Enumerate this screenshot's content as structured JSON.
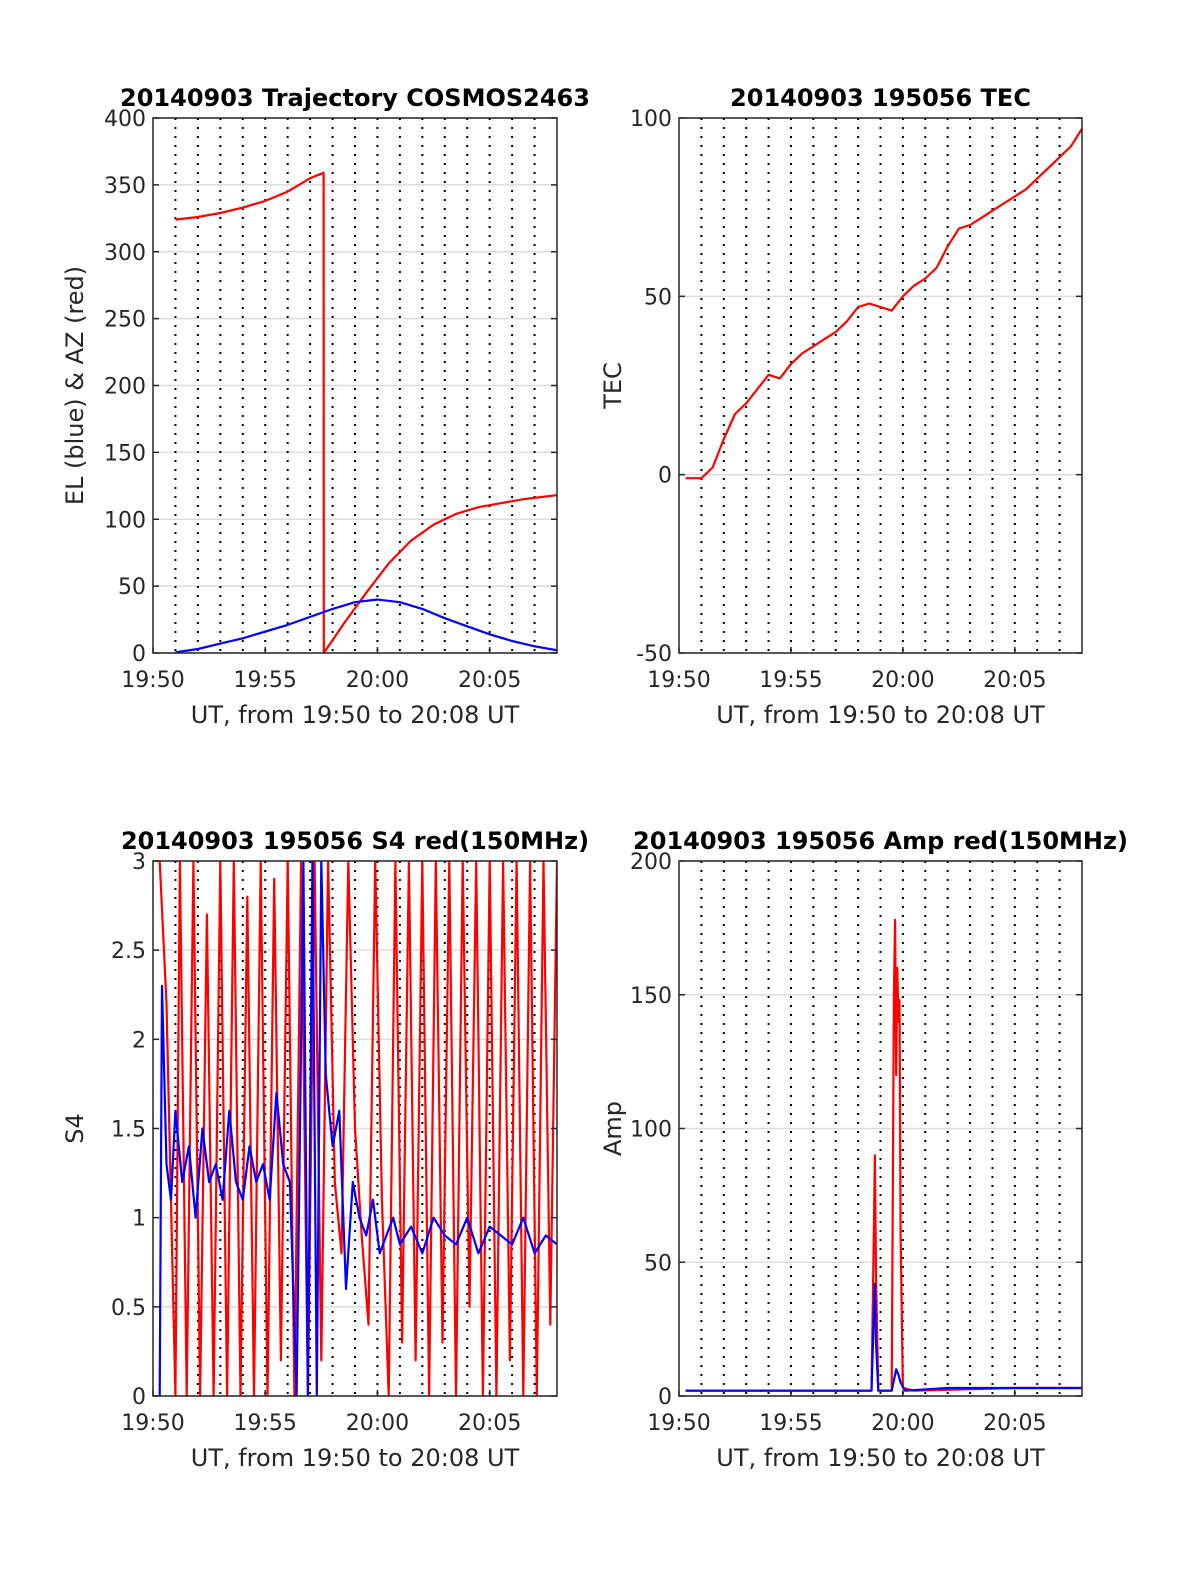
{
  "chart_data": [
    {
      "type": "line",
      "title": "20140903 Trajectory COSMOS2463",
      "xlabel": "UT, from 19:50 to 20:08 UT",
      "ylabel": "EL (blue) & AZ (red)",
      "x_unit": "minutes after 19:50 UT",
      "xlim": [
        0,
        18
      ],
      "ylim": [
        0,
        400
      ],
      "xticks": [
        0,
        5,
        10,
        15
      ],
      "xtick_labels": [
        "19:50",
        "19:55",
        "20:00",
        "20:05"
      ],
      "yticks": [
        0,
        50,
        100,
        150,
        200,
        250,
        300,
        350,
        400
      ],
      "ytick_labels": [
        "0",
        "50",
        "100",
        "150",
        "200",
        "250",
        "300",
        "350",
        "400"
      ],
      "grid": true,
      "series": [
        {
          "color": "#ff0000",
          "x": [
            1,
            2,
            3,
            4,
            5,
            6,
            6.5,
            7,
            7.6,
            7.61,
            8.5,
            9.5,
            10.5,
            11.5,
            12.5,
            13.5,
            14.5,
            15.5,
            16.5,
            17.5,
            18
          ],
          "values": [
            324,
            326,
            329,
            333,
            338,
            345,
            350,
            355,
            359,
            0,
            22,
            45,
            67,
            84,
            96,
            104,
            109,
            112,
            115,
            117,
            118
          ]
        },
        {
          "color": "#0000ff",
          "x": [
            1,
            2,
            3,
            4,
            5,
            6,
            7,
            8,
            9,
            10,
            11,
            12,
            13,
            14,
            15,
            16,
            17,
            18
          ],
          "values": [
            0.5,
            3,
            7,
            11,
            16,
            21,
            27,
            33,
            38,
            40,
            38,
            33,
            26,
            20,
            14,
            9,
            5,
            2
          ]
        }
      ]
    },
    {
      "type": "line",
      "title": "20140903 195056 TEC",
      "xlabel": "UT, from 19:50 to 20:08 UT",
      "ylabel": "TEC",
      "x_unit": "minutes after 19:50 UT",
      "xlim": [
        0,
        18
      ],
      "ylim": [
        -50,
        100
      ],
      "xticks": [
        0,
        5,
        10,
        15
      ],
      "xtick_labels": [
        "19:50",
        "19:55",
        "20:00",
        "20:05"
      ],
      "yticks": [
        -50,
        0,
        50,
        100
      ],
      "ytick_labels": [
        "-50",
        "0",
        "50",
        "100"
      ],
      "grid": true,
      "series": [
        {
          "color": "#ff0000",
          "x": [
            0.3,
            1,
            1.5,
            2,
            2.5,
            3,
            3.5,
            4,
            4.5,
            5,
            5.5,
            6,
            6.5,
            7,
            7.5,
            8,
            8.5,
            9,
            9.5,
            10,
            10.5,
            11,
            11.5,
            12,
            12.5,
            13,
            13.5,
            14,
            14.5,
            15,
            15.5,
            16,
            16.5,
            17,
            17.5,
            18
          ],
          "values": [
            -1,
            -1,
            2,
            10,
            17,
            20,
            24,
            28,
            27,
            31,
            34,
            36,
            38,
            40,
            43,
            47,
            48,
            47,
            46,
            50,
            53,
            55,
            58,
            64,
            69,
            70,
            72,
            74,
            76,
            78,
            80,
            83,
            86,
            89,
            92,
            97
          ]
        }
      ]
    },
    {
      "type": "line",
      "title": "20140903 195056 S4 red(150MHz)",
      "xlabel": "UT, from 19:50 to 20:08 UT",
      "ylabel": "S4",
      "x_unit": "minutes after 19:50 UT",
      "xlim": [
        0,
        18
      ],
      "ylim": [
        0,
        3
      ],
      "xticks": [
        0,
        5,
        10,
        15
      ],
      "xtick_labels": [
        "19:50",
        "19:55",
        "20:00",
        "20:05"
      ],
      "yticks": [
        0,
        0.5,
        1,
        1.5,
        2,
        2.5,
        3
      ],
      "ytick_labels": [
        "0",
        "0.5",
        "1",
        "1.5",
        "2",
        "2.5",
        "3"
      ],
      "grid": true,
      "series": [
        {
          "color": "#ff0000",
          "x": [
            0.3,
            0.6,
            1,
            1.2,
            1.5,
            1.8,
            2.1,
            2.4,
            2.7,
            3.0,
            3.3,
            3.6,
            3.9,
            4.2,
            4.5,
            4.8,
            5.1,
            5.4,
            5.7,
            6.0,
            6.3,
            6.6,
            6.9,
            7.2,
            7.5,
            7.8,
            8.1,
            8.4,
            8.7,
            9.0,
            9.3,
            9.6,
            9.9,
            10.2,
            10.5,
            10.8,
            11.1,
            11.4,
            11.7,
            12.0,
            12.3,
            12.6,
            12.9,
            13.2,
            13.5,
            13.8,
            14.1,
            14.4,
            14.7,
            15.0,
            15.3,
            15.6,
            15.9,
            16.2,
            16.5,
            16.8,
            17.1,
            17.4,
            17.7,
            18.0
          ],
          "values": [
            3,
            2.2,
            0,
            3,
            0,
            3,
            0,
            2.7,
            0,
            3,
            0,
            3,
            0,
            2.8,
            0,
            3,
            0,
            2.9,
            0.2,
            3,
            0,
            3,
            0,
            3,
            0.2,
            3,
            1.2,
            0.8,
            3,
            1.5,
            0.9,
            0.4,
            3,
            1.1,
            0,
            3,
            0.3,
            3,
            0.2,
            3,
            0,
            3,
            0.3,
            3,
            0,
            3,
            0.5,
            3,
            0,
            3,
            0,
            3,
            0.2,
            3,
            0,
            3,
            0,
            3,
            0.4,
            3
          ]
        },
        {
          "color": "#0000ff",
          "x": [
            0.3,
            0.4,
            0.6,
            0.8,
            1.0,
            1.3,
            1.6,
            1.9,
            2.2,
            2.5,
            2.8,
            3.1,
            3.4,
            3.7,
            4.0,
            4.3,
            4.6,
            4.9,
            5.2,
            5.5,
            5.8,
            6.1,
            6.4,
            6.7,
            6.9,
            7.1,
            7.3,
            7.5,
            7.7,
            8.0,
            8.3,
            8.6,
            8.9,
            9.2,
            9.5,
            9.8,
            10.1,
            10.4,
            10.7,
            11.0,
            11.5,
            12.0,
            12.5,
            13.0,
            13.5,
            14.0,
            14.5,
            15.0,
            15.5,
            16.0,
            16.5,
            17.0,
            17.5,
            18.0
          ],
          "values": [
            0,
            2.3,
            1.3,
            1.1,
            1.6,
            1.2,
            1.4,
            1.0,
            1.5,
            1.2,
            1.3,
            1.1,
            1.6,
            1.2,
            1.1,
            1.4,
            1.2,
            1.3,
            1.1,
            1.7,
            1.3,
            1.2,
            0,
            3,
            0,
            3,
            0,
            3,
            1.8,
            1.4,
            1.6,
            0.6,
            1.2,
            1.0,
            0.9,
            1.1,
            0.8,
            0.9,
            1.0,
            0.85,
            0.95,
            0.8,
            1.0,
            0.9,
            0.85,
            1.0,
            0.8,
            0.95,
            0.9,
            0.85,
            1.0,
            0.8,
            0.9,
            0.85
          ]
        }
      ]
    },
    {
      "type": "line",
      "title": "20140903 195056 Amp red(150MHz)",
      "xlabel": "UT, from 19:50 to 20:08 UT",
      "ylabel": "Amp",
      "x_unit": "minutes after 19:50 UT",
      "xlim": [
        0,
        18
      ],
      "ylim": [
        0,
        200
      ],
      "xticks": [
        0,
        5,
        10,
        15
      ],
      "xtick_labels": [
        "19:50",
        "19:55",
        "20:00",
        "20:05"
      ],
      "yticks": [
        0,
        50,
        100,
        150,
        200
      ],
      "ytick_labels": [
        "0",
        "50",
        "100",
        "150",
        "200"
      ],
      "grid": true,
      "series": [
        {
          "color": "#ff0000",
          "x": [
            0.3,
            4,
            8.6,
            8.7,
            8.75,
            8.8,
            8.9,
            9.0,
            9.5,
            9.6,
            9.65,
            9.7,
            9.75,
            9.8,
            9.85,
            9.9,
            10.0,
            10.5,
            15,
            18
          ],
          "values": [
            2,
            2,
            2,
            60,
            90,
            45,
            2,
            2,
            2,
            150,
            178,
            120,
            160,
            140,
            148,
            60,
            3,
            2,
            3,
            3
          ]
        },
        {
          "color": "#0000ff",
          "x": [
            0.3,
            4,
            8.6,
            8.7,
            8.75,
            8.8,
            8.9,
            9.0,
            9.5,
            9.7,
            9.8,
            9.9,
            10.1,
            12,
            15,
            18
          ],
          "values": [
            2,
            2,
            2,
            30,
            42,
            20,
            2,
            2,
            2,
            10,
            8,
            5,
            2,
            3,
            3,
            3
          ]
        }
      ]
    }
  ]
}
